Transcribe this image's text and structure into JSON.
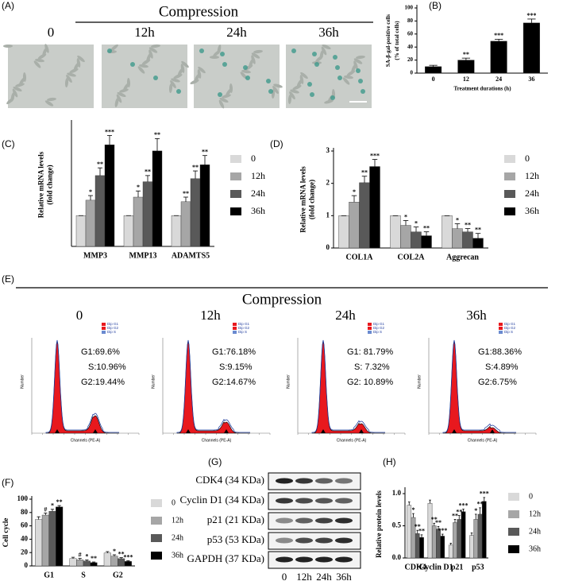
{
  "panels": [
    "(A)",
    "(B)",
    "(C)",
    "(D)",
    "(E)",
    "(F)",
    "(G)",
    "(H)"
  ],
  "micrographs": {
    "title": "Compression",
    "labels": [
      "0",
      "12h",
      "24h",
      "36h"
    ]
  },
  "flow": {
    "title": "Compression",
    "labels": [
      "0",
      "12h",
      "24h",
      "36h"
    ],
    "stats": [
      [
        "G1:69.6%",
        "S:10.96%",
        "G2:19.44%"
      ],
      [
        "G1:76.18%",
        "S:9.15%",
        "G2:14.67%"
      ],
      [
        "G1: 81.79%",
        "S: 7.32%",
        "G2: 10.89%"
      ],
      [
        "G1:88.36%",
        "S:4.89%",
        "G2:6.75%"
      ]
    ],
    "legend": [
      "Dip G1",
      "Dip G2",
      "Dip S"
    ],
    "xlabel": "Channels (PE-A)",
    "ylabel": "Number"
  },
  "western": {
    "rows": [
      "CDK4 (34 KDa)",
      "Cyclin D1 (34 KDa)",
      "p21 (21 KDa)",
      "p53 (53 KDa)",
      "GAPDH (37 KDa)"
    ],
    "lanes": [
      "0",
      "12h",
      "24h",
      "36h"
    ]
  },
  "chart_data": [
    {
      "type": "bar",
      "categories": [
        "0",
        "12",
        "24",
        "36"
      ],
      "values": [
        10,
        20,
        49,
        77
      ],
      "errors": [
        2,
        3,
        3,
        6
      ],
      "stars": [
        null,
        "**",
        "***",
        "***"
      ],
      "color": "#000000",
      "ylabel": [
        "SA-β-gal-positive cells",
        "(% of total cells)"
      ],
      "xlabel": "Treatment durations (h)",
      "ylim": [
        0,
        100
      ],
      "yticks": [
        0,
        20,
        40,
        60,
        80,
        100
      ]
    },
    {
      "type": "bar",
      "categories": [
        "MMP3",
        "MMP13",
        "ADAMTS5"
      ],
      "ylabel": [
        "Relative mRNA levels",
        "(fold change)"
      ],
      "ylim": [
        0,
        4
      ],
      "series": [
        {
          "name": "0",
          "color": "#d9d9d9",
          "values": [
            1,
            1,
            1
          ],
          "errors": [
            0,
            0,
            0
          ],
          "stars": [
            null,
            null,
            null
          ]
        },
        {
          "name": "12h",
          "color": "#a6a6a6",
          "values": [
            1.5,
            1.6,
            1.45
          ],
          "errors": [
            0.15,
            0.2,
            0.15
          ],
          "stars": [
            "*",
            "*",
            "**"
          ]
        },
        {
          "name": "24h",
          "color": "#595959",
          "values": [
            2.3,
            2.1,
            2.2
          ],
          "errors": [
            0.25,
            0.2,
            0.25
          ],
          "stars": [
            "**",
            "**",
            "**"
          ]
        },
        {
          "name": "36h",
          "color": "#000000",
          "values": [
            3.3,
            3.1,
            2.65
          ],
          "errors": [
            0.3,
            0.4,
            0.3
          ],
          "stars": [
            "***",
            "**",
            "**"
          ]
        }
      ]
    },
    {
      "type": "bar",
      "categories": [
        "COL1A",
        "COL2A",
        "Aggrecan"
      ],
      "ylabel": [
        "Relative mRNA levels",
        "(fold change)"
      ],
      "ylim": [
        0,
        3
      ],
      "yticks": [
        0,
        1,
        2,
        3
      ],
      "series": [
        {
          "name": "0",
          "color": "#d9d9d9",
          "values": [
            1,
            1,
            1
          ],
          "errors": [
            0,
            0,
            0
          ],
          "stars": [
            null,
            null,
            null
          ]
        },
        {
          "name": "12h",
          "color": "#a6a6a6",
          "values": [
            1.42,
            0.7,
            0.6
          ],
          "errors": [
            0.2,
            0.15,
            0.15
          ],
          "stars": [
            "*",
            "*",
            "*"
          ]
        },
        {
          "name": "24h",
          "color": "#595959",
          "values": [
            2.02,
            0.5,
            0.5
          ],
          "errors": [
            0.2,
            0.15,
            0.1
          ],
          "stars": [
            "**",
            "*",
            "**"
          ]
        },
        {
          "name": "36h",
          "color": "#000000",
          "values": [
            2.52,
            0.38,
            0.3
          ],
          "errors": [
            0.22,
            0.12,
            0.15
          ],
          "stars": [
            "***",
            "**",
            "**"
          ]
        }
      ]
    },
    {
      "type": "bar",
      "categories": [
        "G1",
        "S",
        "G2"
      ],
      "ylabel": [
        "Cell cycle"
      ],
      "ylim": [
        0,
        100
      ],
      "yticks": [
        0,
        20,
        40,
        60,
        80,
        100
      ],
      "series": [
        {
          "name": "0",
          "color": "#d9d9d9",
          "values": [
            69.6,
            10.96,
            19.44
          ],
          "errors": [
            4,
            2,
            2
          ],
          "stars": [
            null,
            null,
            null
          ]
        },
        {
          "name": "12h",
          "color": "#a6a6a6",
          "values": [
            76.18,
            9.15,
            14.67
          ],
          "errors": [
            3,
            2,
            2
          ],
          "stars": [
            "#",
            "#",
            "*"
          ]
        },
        {
          "name": "24h",
          "color": "#595959",
          "values": [
            81.79,
            7.32,
            10.89
          ],
          "errors": [
            3,
            1.5,
            1.5
          ],
          "stars": [
            "*",
            "*",
            "**"
          ]
        },
        {
          "name": "36h",
          "color": "#000000",
          "values": [
            88.36,
            4.89,
            6.75
          ],
          "errors": [
            2,
            1,
            1
          ],
          "stars": [
            "**",
            "**",
            "***"
          ]
        }
      ]
    },
    {
      "type": "bar",
      "categories": [
        "CDK4",
        "Cyclin D1",
        "p21",
        "p53"
      ],
      "ylabel": [
        "Relative protein levels"
      ],
      "ylim": [
        0,
        1.05
      ],
      "yticks": [
        {
          "value": 0,
          "label": "0.0"
        },
        0.5,
        {
          "value": 1,
          "label": "1.0"
        }
      ],
      "series": [
        {
          "name": "0",
          "color": "#d9d9d9",
          "values": [
            0.82,
            0.85,
            0.2,
            0.35
          ],
          "errors": [
            0.05,
            0.05,
            0.03,
            0.04
          ],
          "stars": [
            null,
            null,
            null,
            null
          ]
        },
        {
          "name": "12h",
          "color": "#a6a6a6",
          "values": [
            0.63,
            0.5,
            0.55,
            0.6
          ],
          "errors": [
            0.06,
            0.04,
            0.05,
            0.08
          ],
          "stars": [
            "*",
            "**",
            "**",
            "*"
          ]
        },
        {
          "name": "24h",
          "color": "#595959",
          "values": [
            0.38,
            0.45,
            0.6,
            0.68
          ],
          "errors": [
            0.05,
            0.04,
            0.06,
            0.1
          ],
          "stars": [
            "**",
            "**",
            "**",
            "**"
          ]
        },
        {
          "name": "36h",
          "color": "#000000",
          "values": [
            0.32,
            0.34,
            0.72,
            0.88
          ],
          "errors": [
            0.04,
            0.03,
            0.04,
            0.06
          ],
          "stars": [
            "**",
            "***",
            "***",
            "***"
          ]
        }
      ]
    }
  ]
}
